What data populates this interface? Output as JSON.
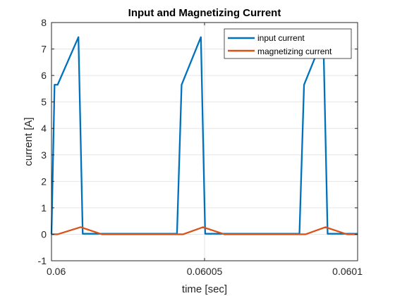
{
  "chart_data": {
    "type": "line",
    "title": "Input and Magnetizing Current",
    "xlabel": "time [sec]",
    "ylabel": "current [A]",
    "xlim": [
      0.06,
      0.0601
    ],
    "ylim": [
      -1,
      8
    ],
    "x_ticks": [
      0.06,
      0.06005,
      0.0601
    ],
    "x_tick_labels": [
      "0.06",
      "0.06005",
      "0.0601"
    ],
    "y_ticks": [
      -1,
      0,
      1,
      2,
      3,
      4,
      5,
      6,
      7,
      8
    ],
    "y_tick_labels": [
      "-1",
      "0",
      "1",
      "2",
      "3",
      "4",
      "5",
      "6",
      "7",
      "8"
    ],
    "grid": true,
    "legend_position": "top-right",
    "series": [
      {
        "name": "input current",
        "color": "#0072BD",
        "x": [
          0.06,
          0.060001,
          0.060002,
          0.0600088,
          0.0600102,
          0.060041,
          0.0600425,
          0.0600488,
          0.0600502,
          0.060081,
          0.0600825,
          0.0600888,
          0.0600902,
          0.0601
        ],
        "y": [
          0,
          5.65,
          5.65,
          7.45,
          0.02,
          0.02,
          5.65,
          7.45,
          0.02,
          0.02,
          5.65,
          7.45,
          0.02,
          0.02
        ]
      },
      {
        "name": "magnetizing current",
        "color": "#D95319",
        "x": [
          0.06,
          0.060002,
          0.0600095,
          0.0600165,
          0.060043,
          0.0600495,
          0.0600565,
          0.060083,
          0.0600895,
          0.0600965,
          0.0601
        ],
        "y": [
          0,
          0,
          0.27,
          0,
          0,
          0.27,
          0,
          0,
          0.27,
          0,
          0
        ]
      }
    ]
  }
}
